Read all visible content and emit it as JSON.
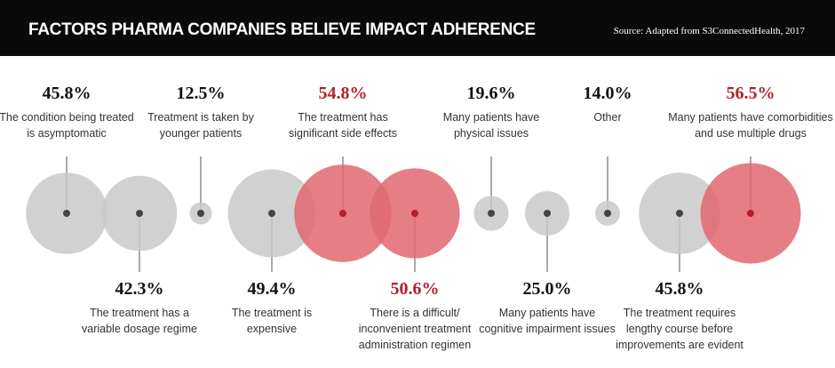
{
  "chart_data": {
    "type": "bubble",
    "title": "FACTORS PHARMA COMPANIES BELIEVE IMPACT ADHERENCE",
    "source": "Source: Adapted from S3ConnectedHealth, 2017",
    "categories": [
      [
        "The condition being treated",
        "is asymptomatic"
      ],
      [
        "The treatment has a",
        "variable dosage regime"
      ],
      [
        "Treatment is taken by",
        "younger patients"
      ],
      [
        "The treatment is",
        "expensive"
      ],
      [
        "The treatment has",
        "significant side effects"
      ],
      [
        "There is a difficult/",
        "inconvenient treatment",
        "administration regimen"
      ],
      [
        "Many patients have",
        "physical issues"
      ],
      [
        "Many patients have",
        "cognitive impairment issues"
      ],
      [
        "Other"
      ],
      [
        "The treatment requires",
        "lengthy course before",
        "improvements are evident"
      ],
      [
        "Many patients have comorbidities",
        "and use multiple drugs"
      ]
    ],
    "values": [
      45.8,
      42.3,
      12.5,
      49.4,
      54.8,
      50.6,
      19.6,
      25.0,
      14.0,
      45.8,
      56.5
    ],
    "value_labels": [
      "45.8%",
      "42.3%",
      "12.5%",
      "49.4%",
      "54.8%",
      "50.6%",
      "19.6%",
      "25.0%",
      "14.0%",
      "45.8%",
      "56.5%"
    ],
    "colors": [
      "#c9c9c9",
      "#c9c9c9",
      "#c9c9c9",
      "#c9c9c9",
      "#e06870",
      "#e06870",
      "#c9c9c9",
      "#c9c9c9",
      "#c9c9c9",
      "#c9c9c9",
      "#e06870"
    ]
  }
}
